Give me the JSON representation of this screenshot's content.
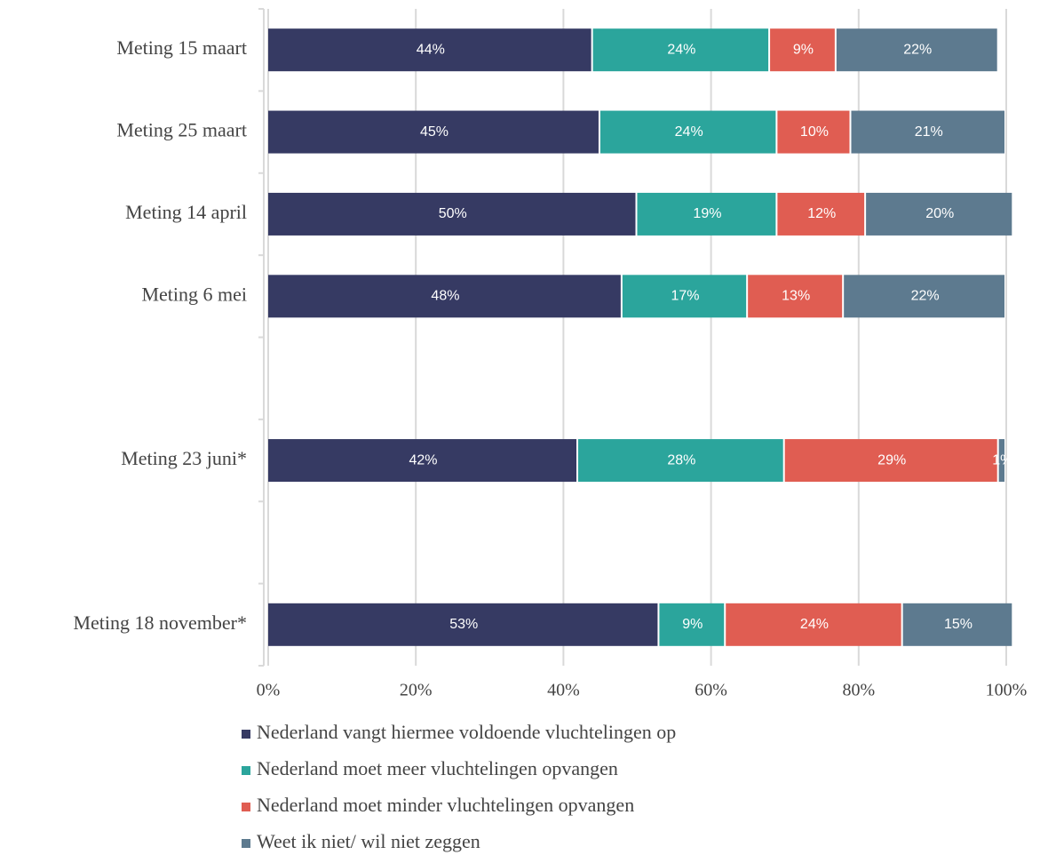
{
  "chart_data": {
    "type": "stacked_bar_horizontal",
    "categories": [
      "Meting 15 maart",
      "Meting 25 maart",
      "Meting 14 april",
      "Meting 6 mei",
      null,
      "Meting 23 juni*",
      null,
      "Meting 18 november*"
    ],
    "series": [
      {
        "name": "Nederland vangt hiermee voldoende vluchtelingen op",
        "color": "#363a63",
        "values": [
          44,
          45,
          50,
          48,
          null,
          42,
          null,
          53
        ],
        "value_labels": [
          "44%",
          "45%",
          "50%",
          "48%",
          null,
          "42%",
          null,
          "53%"
        ]
      },
      {
        "name": "Nederland moet meer vluchtelingen opvangen",
        "color": "#2ba59c",
        "values": [
          24,
          24,
          19,
          17,
          null,
          28,
          null,
          9
        ],
        "value_labels": [
          "24%",
          "24%",
          "19%",
          "17%",
          null,
          "28%",
          null,
          "9%"
        ]
      },
      {
        "name": "Nederland moet minder vluchtelingen opvangen",
        "color": "#e05d52",
        "values": [
          9,
          10,
          12,
          13,
          null,
          29,
          null,
          24
        ],
        "value_labels": [
          "9%",
          "10%",
          "12%",
          "13%",
          null,
          "29%",
          null,
          "24%"
        ]
      },
      {
        "name": "Weet ik niet/ wil niet zeggen",
        "color": "#5d7a8f",
        "values": [
          22,
          21,
          20,
          22,
          null,
          1,
          null,
          15
        ],
        "value_labels": [
          "22%",
          "21%",
          "20%",
          "22%",
          null,
          "1%",
          null,
          "15%"
        ]
      }
    ],
    "xlim": [
      0,
      100
    ],
    "xticks": [
      {
        "value": 0,
        "label": "0%"
      },
      {
        "value": 20,
        "label": "20%"
      },
      {
        "value": 40,
        "label": "40%"
      },
      {
        "value": 60,
        "label": "60%"
      },
      {
        "value": 80,
        "label": "80%"
      },
      {
        "value": 100,
        "label": "100%"
      }
    ],
    "grid": true
  }
}
